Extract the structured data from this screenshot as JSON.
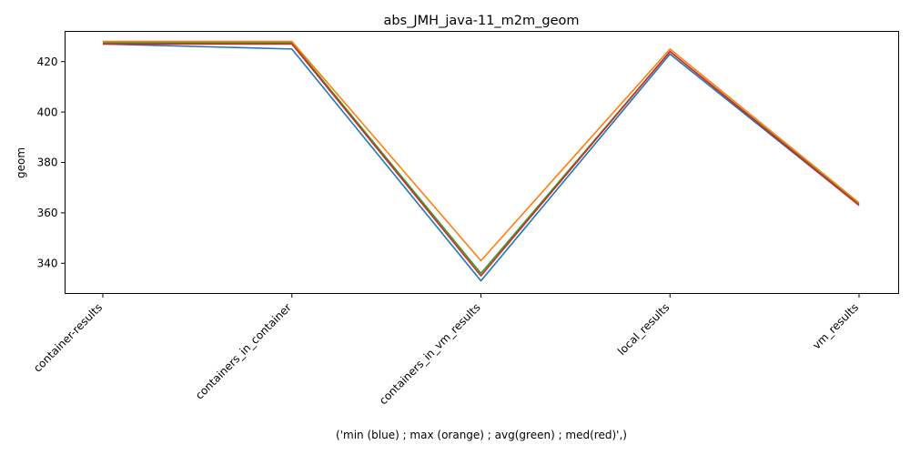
{
  "chart_data": {
    "type": "line",
    "title": "abs_JMH_java-11_m2m_geom",
    "xlabel": "('min (blue) ; max (orange) ; avg(green) ; med(red)',)",
    "ylabel": "geom",
    "categories": [
      "container-results",
      "containers_in_container",
      "containers_in_vm_results",
      "local_results",
      "vm_results"
    ],
    "ylim": [
      328,
      432
    ],
    "yticks": [
      340,
      360,
      380,
      400,
      420
    ],
    "grid": false,
    "series": [
      {
        "color": "#1f77b4",
        "values": [
          427,
          425,
          333,
          423,
          363
        ]
      },
      {
        "color": "#2ca02c",
        "values": [
          427.5,
          427.5,
          336,
          424,
          363.5
        ]
      },
      {
        "color": "#d62728",
        "values": [
          427,
          427,
          335,
          424,
          363
        ]
      },
      {
        "color": "#ff7f0e",
        "values": [
          428,
          428,
          341,
          425,
          364
        ]
      }
    ]
  }
}
